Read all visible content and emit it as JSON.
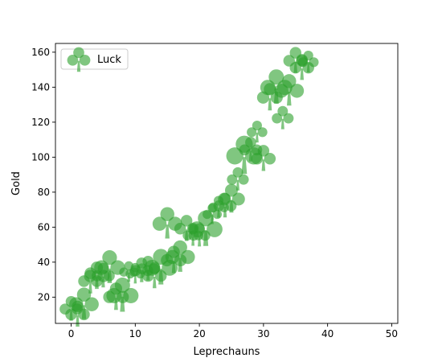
{
  "chart_data": {
    "type": "scatter",
    "xlabel": "Leprechauns",
    "ylabel": "Gold",
    "xlim": [
      -2.45,
      50.95
    ],
    "ylim": [
      5,
      165
    ],
    "xticks": [
      0,
      10,
      20,
      30,
      40,
      50
    ],
    "yticks": [
      20,
      40,
      60,
      80,
      100,
      120,
      140,
      160
    ],
    "grid": false,
    "legend": {
      "entries": [
        "Luck"
      ],
      "placement": "upper-left"
    },
    "marker": "club",
    "color": "#2ca02c",
    "series": [
      {
        "name": "Luck",
        "points": [
          {
            "x": 0,
            "y": 14,
            "s": 0.9
          },
          {
            "x": 1,
            "y": 11,
            "s": 0.95
          },
          {
            "x": 2,
            "y": 17,
            "s": 1.15
          },
          {
            "x": 3,
            "y": 30,
            "s": 0.95
          },
          {
            "x": 4,
            "y": 33,
            "s": 1.0
          },
          {
            "x": 5,
            "y": 33,
            "s": 0.9
          },
          {
            "x": 6,
            "y": 38,
            "s": 1.2
          },
          {
            "x": 7,
            "y": 21,
            "s": 1.0
          },
          {
            "x": 8,
            "y": 22,
            "s": 1.25
          },
          {
            "x": 9,
            "y": 35,
            "s": 0.75
          },
          {
            "x": 10,
            "y": 34,
            "s": 0.75
          },
          {
            "x": 11,
            "y": 36,
            "s": 0.9
          },
          {
            "x": 12,
            "y": 37,
            "s": 0.9
          },
          {
            "x": 13,
            "y": 33,
            "s": 0.95
          },
          {
            "x": 14,
            "y": 38,
            "s": 1.3
          },
          {
            "x": 15,
            "y": 63,
            "s": 1.15
          },
          {
            "x": 16,
            "y": 42,
            "s": 1.0
          },
          {
            "x": 17,
            "y": 44,
            "s": 1.15
          },
          {
            "x": 18,
            "y": 60,
            "s": 0.95
          },
          {
            "x": 19,
            "y": 56,
            "s": 0.8
          },
          {
            "x": 20,
            "y": 56,
            "s": 0.85
          },
          {
            "x": 21,
            "y": 60,
            "s": 1.3
          },
          {
            "x": 22,
            "y": 68,
            "s": 0.75
          },
          {
            "x": 23,
            "y": 72,
            "s": 0.8
          },
          {
            "x": 24,
            "y": 73,
            "s": 0.9
          },
          {
            "x": 25,
            "y": 77,
            "s": 1.05
          },
          {
            "x": 26,
            "y": 88,
            "s": 0.85
          },
          {
            "x": 27,
            "y": 102,
            "s": 1.4
          },
          {
            "x": 28,
            "y": 105,
            "s": 0.9
          },
          {
            "x": 29,
            "y": 115,
            "s": 0.8
          },
          {
            "x": 30,
            "y": 100,
            "s": 0.95
          },
          {
            "x": 31,
            "y": 135,
            "s": 1.0
          },
          {
            "x": 32,
            "y": 141,
            "s": 1.25
          },
          {
            "x": 33,
            "y": 123,
            "s": 0.85
          },
          {
            "x": 34,
            "y": 139,
            "s": 1.15
          },
          {
            "x": 35,
            "y": 156,
            "s": 0.95
          },
          {
            "x": 36,
            "y": 152,
            "s": 0.95
          },
          {
            "x": 37,
            "y": 155,
            "s": 0.8
          }
        ]
      }
    ]
  }
}
